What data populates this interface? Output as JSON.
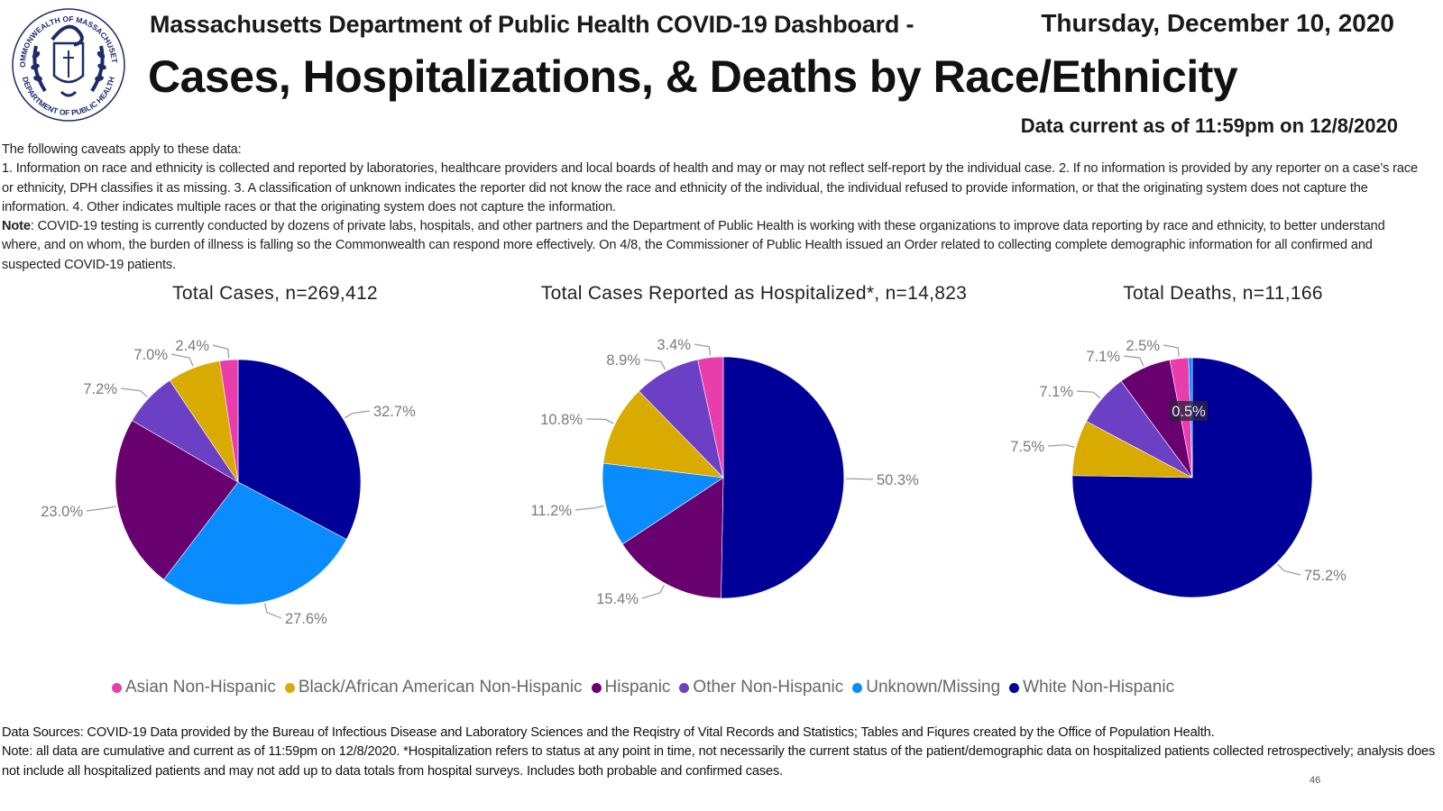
{
  "header": {
    "org_title": "Massachusetts Department of Public Health COVID-19 Dashboard -",
    "date": "Thursday, December 10, 2020",
    "page_title": "Cases, Hospitalizations, & Deaths by Race/Ethnicity",
    "data_current": "Data current as of 11:59pm on 12/8/2020",
    "logo_text_top": "COMMONWEALTH OF MASSACHUSETTS",
    "logo_text_bottom": "DEPARTMENT OF PUBLIC HEALTH"
  },
  "caveats": {
    "intro": "The following caveats apply to these data:",
    "body": "1. Information on race and ethnicity is collected and reported by laboratories, healthcare providers and local boards of health and may or may not reflect self-report by the individual case. 2. If no information is provided by any reporter on a case’s race or ethnicity, DPH classifies it as missing. 3. A classification of unknown indicates the reporter did not know the race and ethnicity of the individual, the individual refused to provide information, or that the originating system does not capture the information. 4. Other indicates multiple races or that the originating system does not capture the information.",
    "note_label": "Note",
    "note_text": ": COVID-19 testing is currently conducted by dozens of private labs, hospitals, and other partners and the Department of Public Health is working with these organizations to improve data reporting by race and ethnicity, to better understand where, and on whom, the burden of illness is falling so the Commonwealth can respond more effectively.  On 4/8, the Commissioner of Public Health issued an Order related to collecting complete demographic information for all confirmed and suspected COVID-19 patients."
  },
  "colors": {
    "Asian Non-Hispanic": "#E83DAB",
    "Black/African American Non-Hispanic": "#D9AA00",
    "Hispanic": "#690070",
    "Other Non-Hispanic": "#6C40C4",
    "Unknown/Missing": "#0A8CFF",
    "White Non-Hispanic": "#000099"
  },
  "chart_data": [
    {
      "type": "pie",
      "title": "Total Cases, n=269,412",
      "categories": [
        "White Non-Hispanic",
        "Unknown/Missing",
        "Hispanic",
        "Other Non-Hispanic",
        "Black/African American Non-Hispanic",
        "Asian Non-Hispanic"
      ],
      "values": [
        32.7,
        27.6,
        23.0,
        7.2,
        7.0,
        2.4
      ],
      "labels": [
        "32.7%",
        "27.6%",
        "23.0%",
        "7.2%",
        "7.0%",
        "2.4%"
      ],
      "unit": "%"
    },
    {
      "type": "pie",
      "title": "Total Cases Reported as Hospitalized*, n=14,823",
      "categories": [
        "White Non-Hispanic",
        "Hispanic",
        "Unknown/Missing",
        "Black/African American Non-Hispanic",
        "Other Non-Hispanic",
        "Asian Non-Hispanic"
      ],
      "values": [
        50.3,
        15.4,
        11.2,
        10.8,
        8.9,
        3.4
      ],
      "labels": [
        "50.3%",
        "15.4%",
        "11.2%",
        "10.8%",
        "8.9%",
        "3.4%"
      ],
      "unit": "%"
    },
    {
      "type": "pie",
      "title": "Total Deaths, n=11,166",
      "categories": [
        "White Non-Hispanic",
        "Black/African American Non-Hispanic",
        "Other Non-Hispanic",
        "Hispanic",
        "Asian Non-Hispanic",
        "Unknown/Missing"
      ],
      "values": [
        75.2,
        7.5,
        7.1,
        7.1,
        2.5,
        0.5
      ],
      "labels": [
        "75.2%",
        "7.5%",
        "7.1%",
        "7.1%",
        "2.5%",
        "0.5%"
      ],
      "unit": "%"
    }
  ],
  "legend": {
    "position": "bottom",
    "items": [
      "Asian Non-Hispanic",
      "Black/African American Non-Hispanic",
      "Hispanic",
      "Other Non-Hispanic",
      "Unknown/Missing",
      "White Non-Hispanic"
    ]
  },
  "footer": {
    "line1": "Data Sources: COVID-19 Data provided by the Bureau of Infectious Disease and Laboratory Sciences and the Reqistry of Vital Records and Statistics; Tables and Fiqures created by the Office of Population Health.",
    "line2": "Note: all data are cumulative and current as of 11:59pm on 12/8/2020. *Hospitalization refers to status at any point in time, not necessarily the current status of the patient/demographic data on hospitalized patients collected retrospectively; analysis does not include all hospitalized patients and may not add up to data totals from hospital surveys. Includes both probable and confirmed cases.",
    "page_number": "46"
  }
}
